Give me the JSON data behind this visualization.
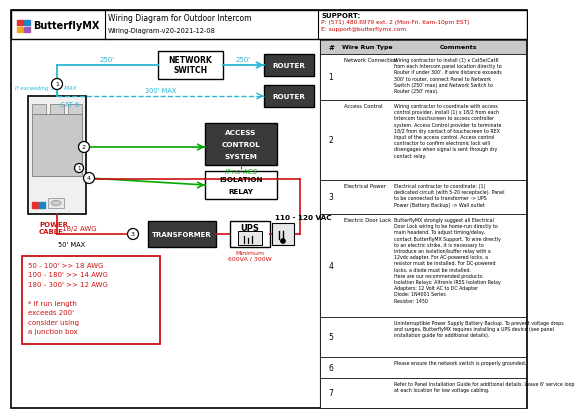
{
  "bg": "#ffffff",
  "dark": "#3a3a3a",
  "cyan": "#29b6d4",
  "green": "#00aa00",
  "red": "#cc1111",
  "gray_hdr": "#c8c8c8",
  "title": "Wiring Diagram for Outdoor Intercom",
  "subtitle": "Wiring-Diagram-v20-2021-12-08",
  "support1": "SUPPORT:",
  "support2": "P: (571) 480.6979 ext. 2 (Mon-Fri, 6am-10pm EST)",
  "support3": "E: support@butterflymx.com",
  "logo": "ButterflyMX",
  "awg": "50 - 100' >> 18 AWG\n100 - 180' >> 14 AWG\n180 - 300' >> 12 AWG\n\n* If run length\nexceeds 200'\nconsider using\na junction box",
  "rows": [
    [
      "1",
      "Network Connection",
      "Wiring contractor to install (1) x Cat5e/Cat6\nfrom each Intercom panel location directly to\nRouter if under 300'. If wire distance exceeds\n300' to router, connect Panel to Network\nSwitch (250' max) and Network Switch to\nRouter (250' max)."
    ],
    [
      "2",
      "Access Control",
      "Wiring contractor to coordinate with access\ncontrol provider, install (1) x 18/2 from each\nIntercom touchscreen to access controller\nsystem. Access Control provider to terminate\n18/2 from dry contact of touchscreen to REX\nInput of the access control. Access control\ncontractor to confirm electronic lock will\ndisengages when signal is sent through dry\ncontact relay."
    ],
    [
      "3",
      "Electrical Power",
      "Electrical contractor to coordinate: (1)\ndedicated circuit (with 5-20 receptacle). Panel\nto be connected to transformer -> UPS\nPower (Battery Backup) -> Wall outlet"
    ],
    [
      "4",
      "Electric Door Lock",
      "ButterflyMX strongly suggest all Electrical\nDoor Lock wiring to be home-run directly to\nmain headend. To adjust timing/delay,\ncontact ButterflyMX Support. To wire directly\nto an electric strike, it is necessary to\nintroduce an isolation/buffer relay with a\n12vdc adapter. For AC-powered locks, a\nresistor must be installed. For DC-powered\nlocks, a diode must be installed.\nHere are our recommended products:\nIsolation Relays: Altronix IR5S Isolation Relay\nAdapters: 12 Volt AC to DC Adapter\nDiode: 1N4001 Series\nResistor: 1450"
    ],
    [
      "5",
      "",
      "Uninterruptible Power Supply Battery Backup. To prevent voltage drops\nand surges, ButterflyMX requires installing a UPS device (see panel\ninstallation guide for additional details)."
    ],
    [
      "6",
      "",
      "Please ensure the network switch is properly grounded."
    ],
    [
      "7",
      "",
      "Refer to Panel Installation Guide for additional details. Leave 6' service loop\nat each location for low voltage cabling."
    ]
  ]
}
